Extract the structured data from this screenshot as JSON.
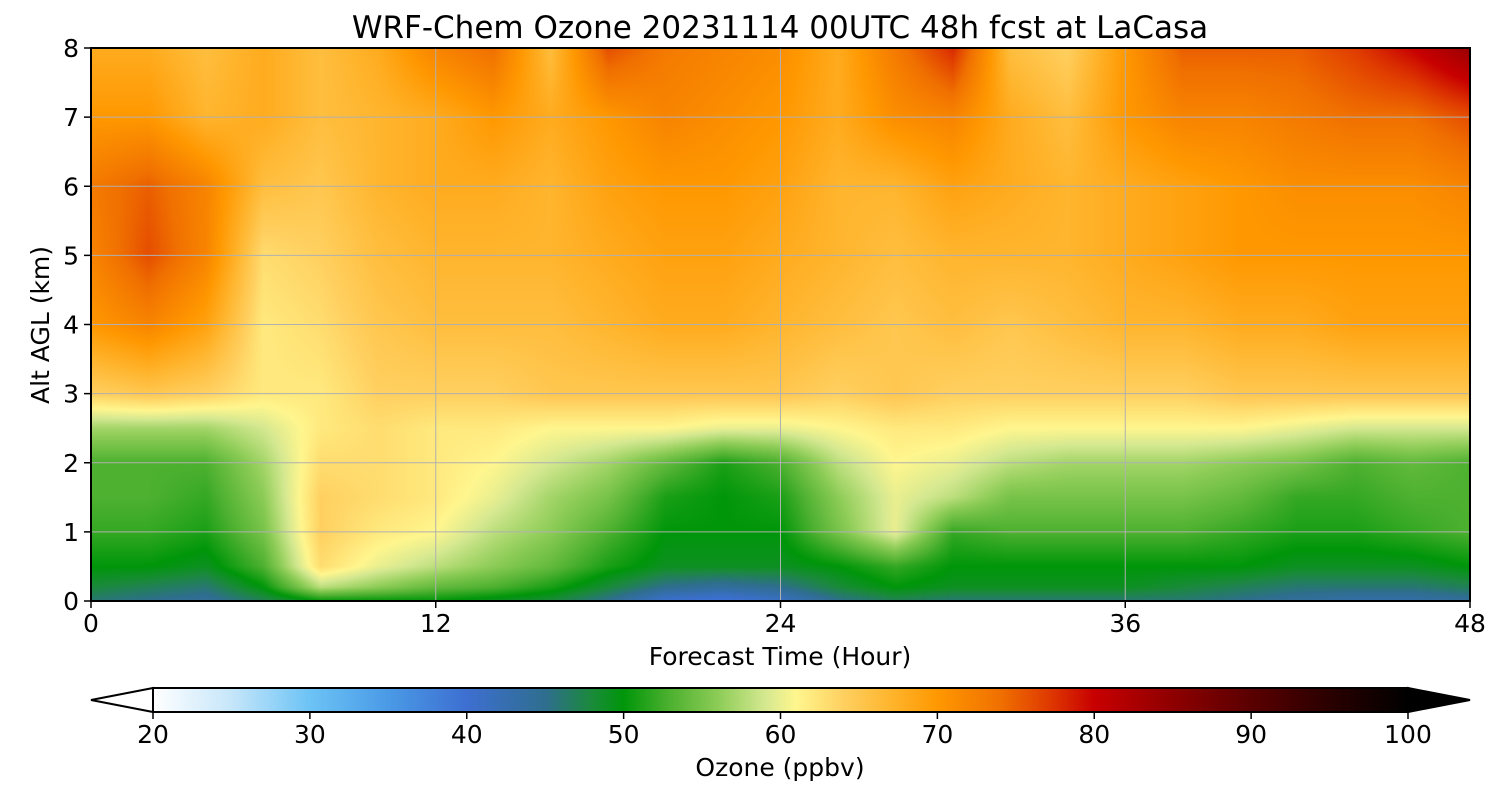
{
  "chart_data": {
    "type": "heatmap",
    "title": "WRF-Chem Ozone  20231114 00UTC 48h fcst at LaCasa",
    "xlabel": "Forecast Time (Hour)",
    "ylabel": "Alt AGL (km)",
    "x_ticks": [
      "0",
      "12",
      "24",
      "36",
      "48"
    ],
    "y_ticks": [
      "0",
      "1",
      "2",
      "3",
      "4",
      "5",
      "6",
      "7",
      "8"
    ],
    "xlim": [
      0,
      48
    ],
    "ylim": [
      0,
      8
    ],
    "grid": true,
    "grid_color": "#b0b0b0",
    "x": [
      0,
      2,
      4,
      6,
      8,
      10,
      12,
      14,
      16,
      18,
      20,
      22,
      24,
      26,
      28,
      30,
      32,
      34,
      36,
      38,
      40,
      42,
      44,
      46,
      48
    ],
    "y": [
      0,
      0.2,
      0.5,
      1,
      1.5,
      2,
      2.5,
      3,
      4,
      5,
      6,
      7,
      8
    ],
    "z": [
      [
        46,
        45,
        44,
        47,
        50,
        50,
        50,
        49,
        48,
        45,
        40,
        39,
        41,
        45,
        47,
        46,
        46,
        46,
        46,
        46,
        45,
        44,
        43,
        43,
        44
      ],
      [
        48,
        47,
        46,
        50,
        58,
        56,
        54,
        53,
        51,
        48,
        45,
        44,
        45,
        48,
        50,
        49,
        49,
        49,
        49,
        48,
        47,
        46,
        46,
        46,
        47
      ],
      [
        50,
        50,
        49,
        53,
        63,
        60,
        58,
        56,
        54,
        51,
        49,
        49,
        49,
        50,
        52,
        50,
        50,
        50,
        50,
        50,
        50,
        49,
        49,
        49,
        50
      ],
      [
        52,
        52,
        51,
        55,
        64,
        62,
        61,
        58,
        56,
        53,
        50,
        50,
        50,
        55,
        60,
        52,
        53,
        53,
        53,
        53,
        52,
        51,
        51,
        52,
        53
      ],
      [
        53,
        53,
        52,
        56,
        64,
        63,
        62,
        60,
        57,
        55,
        51,
        50,
        51,
        56,
        60,
        58,
        55,
        55,
        55,
        55,
        54,
        52,
        52,
        53,
        53
      ],
      [
        53,
        53,
        53,
        57,
        63,
        63,
        62,
        61,
        59,
        57,
        54,
        51,
        53,
        58,
        61,
        60,
        58,
        57,
        57,
        57,
        56,
        55,
        53,
        54,
        53
      ],
      [
        57,
        57,
        57,
        59,
        62,
        63,
        62,
        62,
        61,
        61,
        61,
        60,
        60,
        61,
        62,
        62,
        61,
        61,
        61,
        61,
        61,
        60,
        59,
        59,
        59
      ],
      [
        64,
        65,
        64,
        62,
        62,
        64,
        64,
        64,
        65,
        65,
        65,
        65,
        65,
        64,
        65,
        64,
        64,
        64,
        64,
        64,
        65,
        65,
        65,
        65,
        65
      ],
      [
        70,
        72,
        69,
        62,
        63,
        65,
        66,
        66,
        66,
        67,
        68,
        68,
        67,
        66,
        65,
        66,
        65,
        66,
        67,
        67,
        68,
        68,
        69,
        69,
        69
      ],
      [
        72,
        76,
        72,
        63,
        64,
        66,
        67,
        67,
        67,
        68,
        69,
        69,
        68,
        67,
        66,
        67,
        67,
        67,
        68,
        69,
        70,
        70,
        70,
        70,
        70
      ],
      [
        73,
        75,
        72,
        66,
        65,
        67,
        68,
        68,
        67,
        69,
        70,
        70,
        69,
        67,
        67,
        69,
        68,
        67,
        68,
        69,
        70,
        71,
        71,
        71,
        72
      ],
      [
        70,
        70,
        67,
        68,
        66,
        67,
        68,
        70,
        68,
        70,
        72,
        71,
        70,
        68,
        71,
        72,
        68,
        66,
        70,
        72,
        72,
        73,
        74,
        74,
        76
      ],
      [
        68,
        68,
        66,
        68,
        66,
        68,
        72,
        74,
        66,
        76,
        73,
        72,
        71,
        68,
        73,
        78,
        66,
        64,
        70,
        75,
        75,
        75,
        77,
        80,
        84
      ]
    ],
    "colorbar": {
      "label": "Ozone  (ppbv)",
      "ticks": [
        "20",
        "30",
        "40",
        "50",
        "60",
        "70",
        "80",
        "90",
        "100"
      ],
      "range": [
        20,
        100
      ],
      "extend": "both",
      "stops": [
        {
          "v": 20,
          "c": "#ffffff"
        },
        {
          "v": 25,
          "c": "#c6e6fa"
        },
        {
          "v": 30,
          "c": "#6cc3f5"
        },
        {
          "v": 35,
          "c": "#4a9ae6"
        },
        {
          "v": 40,
          "c": "#3d6fd1"
        },
        {
          "v": 45,
          "c": "#2f6e8f"
        },
        {
          "v": 48,
          "c": "#1a8a3a"
        },
        {
          "v": 50,
          "c": "#00960a"
        },
        {
          "v": 53,
          "c": "#4eb130"
        },
        {
          "v": 56,
          "c": "#8ccc56"
        },
        {
          "v": 59,
          "c": "#d4e890"
        },
        {
          "v": 61,
          "c": "#fff68e"
        },
        {
          "v": 64,
          "c": "#ffd060"
        },
        {
          "v": 67,
          "c": "#ffb52e"
        },
        {
          "v": 70,
          "c": "#ff9800"
        },
        {
          "v": 74,
          "c": "#f07000"
        },
        {
          "v": 77,
          "c": "#e03c00"
        },
        {
          "v": 80,
          "c": "#c80000"
        },
        {
          "v": 85,
          "c": "#8e0000"
        },
        {
          "v": 90,
          "c": "#5a0000"
        },
        {
          "v": 95,
          "c": "#2a0000"
        },
        {
          "v": 100,
          "c": "#000000"
        }
      ]
    }
  }
}
